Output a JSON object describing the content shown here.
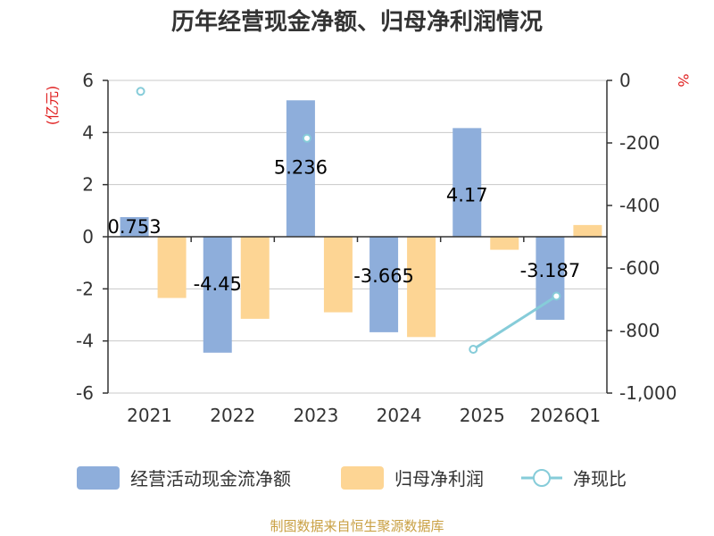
{
  "chart_data": {
    "type": "bar",
    "title": "历年经营现金净额、归母净利润情况",
    "categories": [
      "2021",
      "2022",
      "2023",
      "2024",
      "2025",
      "2026Q1"
    ],
    "series": [
      {
        "name": "经营活动现金流净额",
        "type": "bar",
        "axis": "left",
        "color": "#8eaedb",
        "values": [
          0.753,
          -4.45,
          5.236,
          -3.665,
          4.17,
          -3.187
        ],
        "labels": [
          "0.753",
          "-4.45",
          "5.236",
          "-3.665",
          "4.17",
          "-3.187"
        ]
      },
      {
        "name": "归母净利润",
        "type": "bar",
        "axis": "left",
        "color": "#fdd594",
        "values": [
          -2.35,
          -3.15,
          -2.9,
          -3.85,
          -0.5,
          0.45
        ]
      },
      {
        "name": "净现比",
        "type": "line",
        "axis": "right",
        "color": "#86ccd9",
        "values": [
          -35,
          null,
          -185,
          null,
          -860,
          -690
        ]
      }
    ],
    "y_left": {
      "unit": "(亿元)",
      "min": -6,
      "max": 6,
      "ticks": [
        -6,
        -4,
        -2,
        0,
        2,
        4,
        6
      ],
      "tick_labels": [
        "-6",
        "-4",
        "-2",
        "0",
        "2",
        "4",
        "6"
      ]
    },
    "y_right": {
      "unit": "%",
      "min": -1000,
      "max": 0,
      "ticks": [
        -1000,
        -800,
        -600,
        -400,
        -200,
        0
      ],
      "tick_labels": [
        "-1,000",
        "-800",
        "-600",
        "-400",
        "-200",
        "0"
      ]
    },
    "grid": true,
    "legend_position": "bottom",
    "unit_color": "#e02020",
    "source_color": "#c9a043"
  },
  "source": "制图数据来自恒生聚源数据库"
}
